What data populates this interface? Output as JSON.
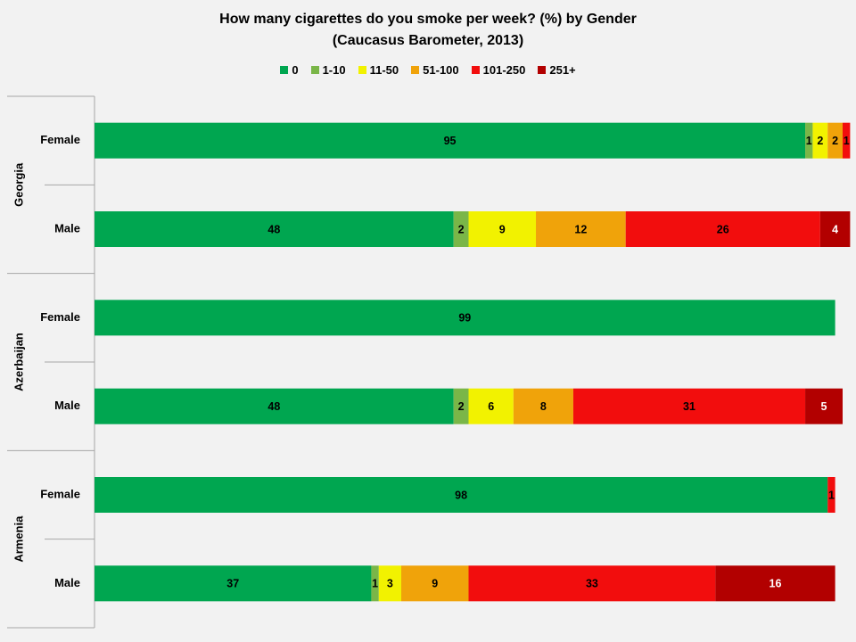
{
  "chart_data": {
    "type": "bar",
    "orientation": "horizontal",
    "stacked": true,
    "title": "How many cigarettes do you smoke per week? (%) by Gender",
    "subtitle": "(Caucasus Barometer, 2013)",
    "legend_position": "top",
    "series": [
      {
        "name": "0",
        "color": "#00a650"
      },
      {
        "name": "1-10",
        "color": "#7ab648"
      },
      {
        "name": "11-50",
        "color": "#f2f200"
      },
      {
        "name": "51-100",
        "color": "#f0a30a"
      },
      {
        "name": "101-250",
        "color": "#f20d0d"
      },
      {
        "name": "251+",
        "color": "#b20000"
      }
    ],
    "groups": [
      {
        "name": "Georgia",
        "rows": [
          {
            "label": "Female",
            "values": [
              95,
              1,
              2,
              2,
              1,
              0
            ],
            "labels": [
              "95",
              "1",
              "2",
              "2",
              "1",
              ""
            ]
          },
          {
            "label": "Male",
            "values": [
              48,
              2,
              9,
              12,
              26,
              4
            ],
            "labels": [
              "48",
              "2",
              "9",
              "12",
              "26",
              "4"
            ]
          }
        ]
      },
      {
        "name": "Azerbaijan",
        "rows": [
          {
            "label": "Female",
            "values": [
              99,
              0,
              0,
              0,
              0,
              0
            ],
            "labels": [
              "99",
              "",
              "",
              "",
              "",
              ""
            ]
          },
          {
            "label": "Male",
            "values": [
              48,
              2,
              6,
              8,
              31,
              5
            ],
            "labels": [
              "48",
              "2",
              "6",
              "8",
              "31",
              "5"
            ]
          }
        ]
      },
      {
        "name": "Armenia",
        "rows": [
          {
            "label": "Female",
            "values": [
              98,
              0,
              0,
              0,
              1,
              0
            ],
            "labels": [
              "98",
              "",
              "",
              "",
              "1",
              ""
            ]
          },
          {
            "label": "Male",
            "values": [
              37,
              1,
              3,
              9,
              33,
              16
            ],
            "labels": [
              "37",
              "1",
              "3",
              "9",
              "33",
              "16"
            ]
          }
        ]
      }
    ]
  }
}
